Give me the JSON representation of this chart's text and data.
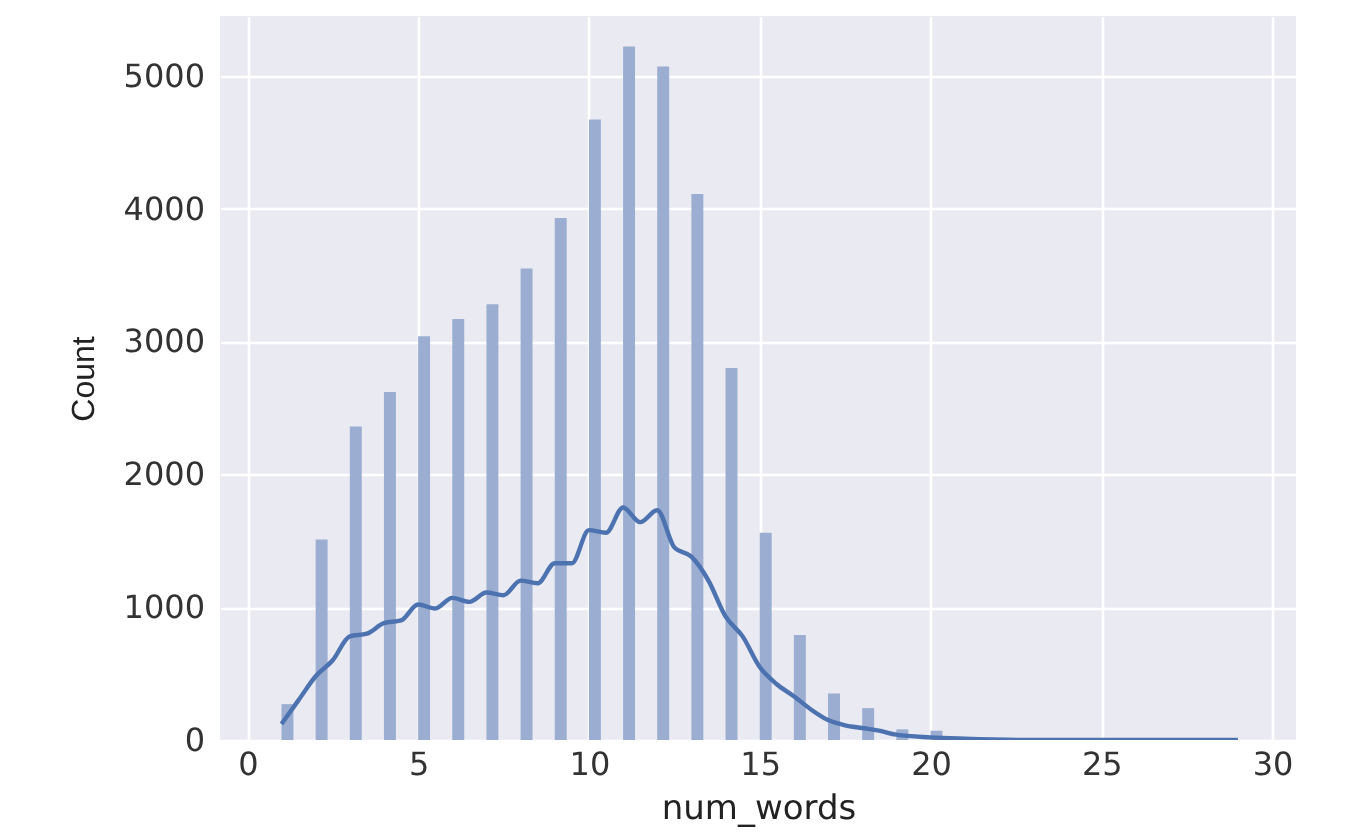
{
  "chart_data": {
    "type": "histogram",
    "xlabel": "num_words",
    "ylabel": "Count",
    "xlim": [
      -0.8,
      30.7
    ],
    "ylim": [
      0,
      5450
    ],
    "xticks": [
      0,
      5,
      10,
      15,
      20,
      25,
      30
    ],
    "yticks": [
      0,
      1000,
      2000,
      3000,
      4000,
      5000
    ],
    "grid": true,
    "series": [
      {
        "color": "#9baed1",
        "bins": [
          1,
          1.35,
          2,
          2.35,
          3,
          3.35,
          4,
          4.35,
          5,
          5.35,
          6,
          6.35,
          7,
          7.35,
          8,
          8.35,
          9,
          9.35,
          10,
          10.35,
          11,
          11.35,
          12,
          12.35,
          13,
          13.35,
          14,
          14.35,
          15,
          15.35,
          16,
          16.35,
          17,
          17.35,
          18,
          18.35,
          19,
          19.35,
          20,
          20.35
        ],
        "values": [
          270,
          0,
          1510,
          0,
          2360,
          0,
          2620,
          0,
          3040,
          0,
          3170,
          0,
          3280,
          0,
          3550,
          0,
          3930,
          0,
          4670,
          0,
          5220,
          0,
          5070,
          0,
          4110,
          0,
          2800,
          0,
          1560,
          0,
          790,
          0,
          350,
          0,
          240,
          0,
          80,
          0,
          70
        ]
      },
      {
        "type": "line",
        "color": "#4c72b0",
        "x": [
          1,
          1.5,
          2,
          2.5,
          3,
          3.5,
          4,
          4.5,
          5,
          5.5,
          6,
          6.5,
          7,
          7.5,
          8,
          8.5,
          9,
          9.5,
          10,
          10.5,
          11,
          11.5,
          12,
          12.5,
          13,
          13.5,
          14,
          14.5,
          15,
          15.5,
          16,
          16.5,
          17,
          17.5,
          18,
          18.5,
          19,
          20,
          21,
          23,
          25,
          29
        ],
        "values": [
          120,
          300,
          480,
          600,
          780,
          800,
          880,
          900,
          1020,
          990,
          1070,
          1040,
          1110,
          1090,
          1200,
          1180,
          1330,
          1330,
          1580,
          1560,
          1750,
          1640,
          1730,
          1450,
          1380,
          1200,
          930,
          780,
          550,
          420,
          330,
          230,
          150,
          110,
          90,
          70,
          40,
          20,
          10,
          0,
          0,
          0
        ]
      }
    ]
  }
}
